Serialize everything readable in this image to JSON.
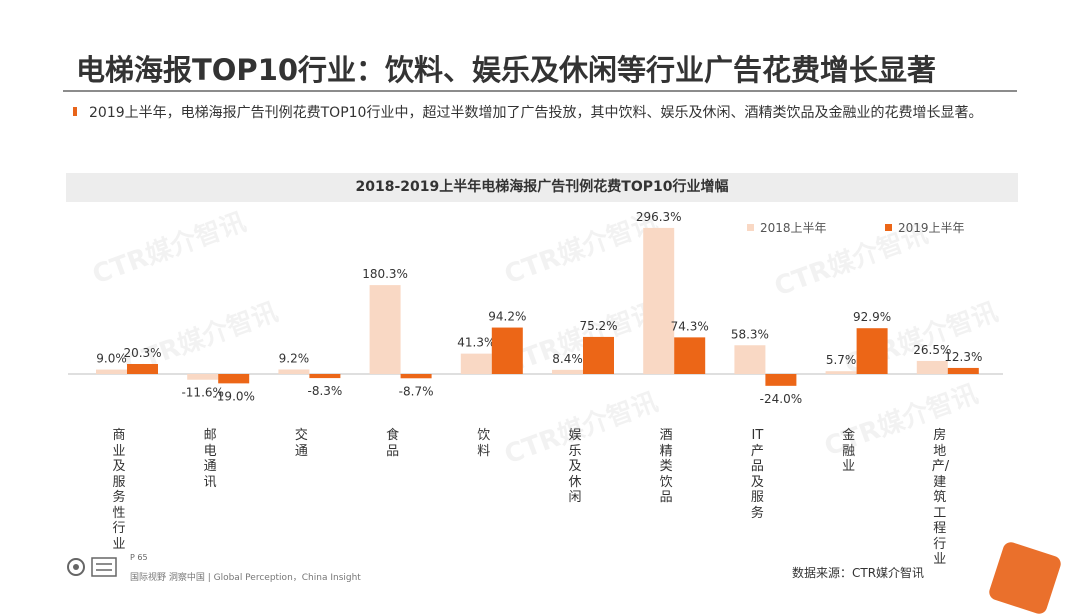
{
  "title": "电梯海报TOP10行业：饮料、娱乐及休闲等行业广告花费增长显著",
  "bullet": "2019上半年，电梯海报广告刊例花费TOP10行业中，超过半数增加了广告投放，其中饮料、娱乐及休闲、酒精类饮品及金融业的花费增长显著。",
  "colors": {
    "s2018": "#f9d8c4",
    "s2019": "#ec6617",
    "accent": "#e8641a"
  },
  "watermark_text": "CTR媒介智讯",
  "chart_data": {
    "type": "bar",
    "title": "2018-2019上半年电梯海报广告刊例花费TOP10行业增幅",
    "unit": "%",
    "legend": "top-right",
    "categories": [
      "商业及服务性行业",
      "邮电通讯",
      "交通",
      "食品",
      "饮料",
      "娱乐及休闲",
      "酒精类饮品",
      "IT产品及服务",
      "金融业",
      "房地产/建筑工程行业"
    ],
    "series": [
      {
        "name": "2018上半年",
        "values": [
          9.0,
          -11.6,
          9.2,
          180.3,
          41.3,
          8.4,
          296.3,
          58.3,
          5.7,
          26.5
        ],
        "labels": [
          "9.0%",
          "-11.6%",
          "9.2%",
          "180.3%",
          "41.3%",
          "8.4%",
          "296.3%",
          "58.3%",
          "5.7%",
          "26.5%"
        ]
      },
      {
        "name": "2019上半年",
        "values": [
          20.3,
          -19.0,
          -8.3,
          -8.7,
          94.2,
          75.2,
          74.3,
          -24.0,
          92.9,
          12.3
        ],
        "labels": [
          "20.3%",
          "-19.0%",
          "-8.3%",
          "-8.7%",
          "94.2%",
          "75.2%",
          "74.3%",
          "-24.0%",
          "92.9%",
          "12.3%"
        ]
      }
    ]
  },
  "footer": {
    "page": "P 65",
    "tagline": "国际视野 洞察中国 | Global Perception，China Insight",
    "source": "数据来源：CTR媒介智讯"
  }
}
